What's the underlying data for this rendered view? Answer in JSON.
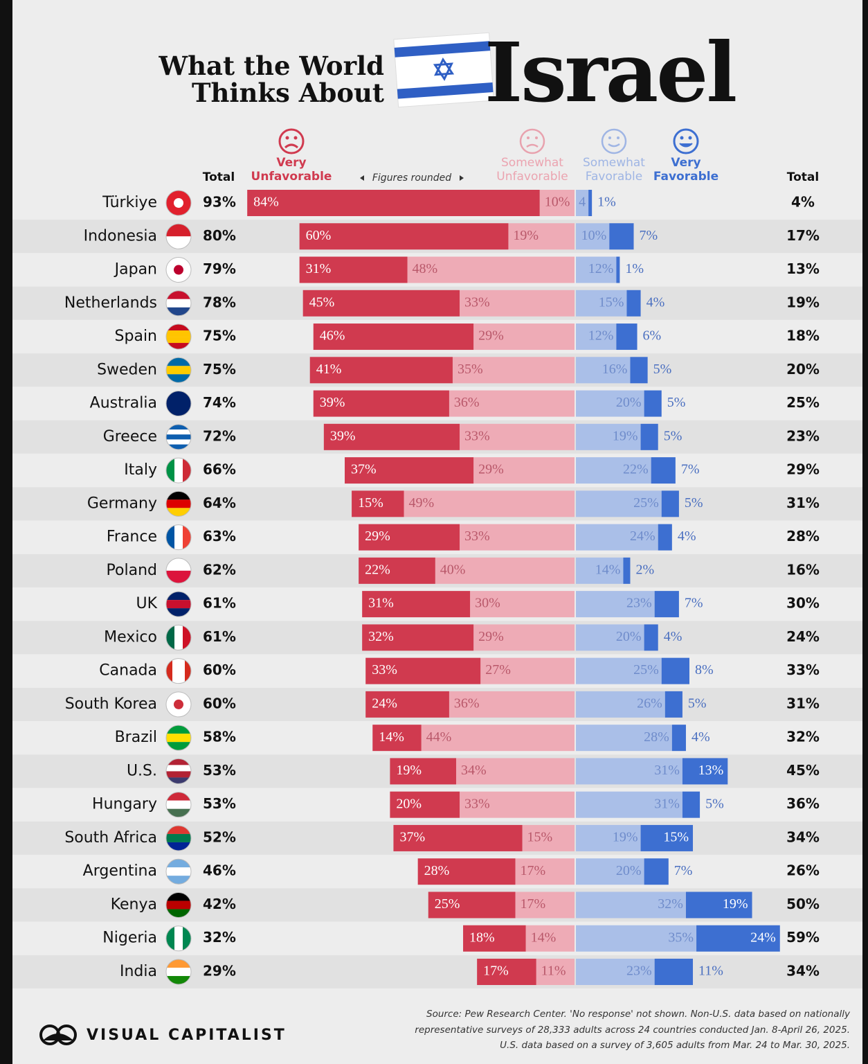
{
  "chart_data": {
    "type": "diverging_bar",
    "title_lines": [
      "What the World",
      "Thinks About"
    ],
    "title_emphasis": "Israel",
    "note": "Figures rounded",
    "total_label_left": "Total",
    "total_label_right": "Total",
    "categories": [
      "Türkiye",
      "Indonesia",
      "Japan",
      "Netherlands",
      "Spain",
      "Sweden",
      "Australia",
      "Greece",
      "Italy",
      "Germany",
      "France",
      "Poland",
      "UK",
      "Mexico",
      "Canada",
      "South Korea",
      "Brazil",
      "U.S.",
      "Hungary",
      "South Africa",
      "Argentina",
      "Kenya",
      "Nigeria",
      "India"
    ],
    "totals_unfavorable": {
      "values": [
        93,
        80,
        79,
        78,
        75,
        75,
        74,
        72,
        66,
        64,
        63,
        62,
        61,
        61,
        60,
        60,
        58,
        53,
        53,
        52,
        46,
        42,
        32,
        29
      ],
      "value_labels": [
        "93%",
        "80%",
        "79%",
        "78%",
        "75%",
        "75%",
        "74%",
        "72%",
        "66%",
        "64%",
        "63%",
        "62%",
        "61%",
        "61%",
        "60%",
        "60%",
        "58%",
        "53%",
        "53%",
        "52%",
        "46%",
        "42%",
        "32%",
        "29%"
      ]
    },
    "totals_favorable": {
      "values": [
        4,
        17,
        13,
        19,
        18,
        20,
        25,
        23,
        29,
        31,
        28,
        16,
        30,
        24,
        33,
        31,
        32,
        45,
        36,
        34,
        26,
        50,
        59,
        34
      ],
      "value_labels": [
        "4%",
        "17%",
        "13%",
        "19%",
        "18%",
        "20%",
        "25%",
        "23%",
        "29%",
        "31%",
        "28%",
        "16%",
        "30%",
        "24%",
        "33%",
        "31%",
        "32%",
        "45%",
        "36%",
        "34%",
        "26%",
        "50%",
        "59%",
        "34%"
      ]
    },
    "series": [
      {
        "name": "Very Unfavorable",
        "color": "#d03a4f",
        "values": [
          84,
          60,
          31,
          45,
          46,
          41,
          39,
          39,
          37,
          15,
          29,
          22,
          31,
          32,
          33,
          24,
          14,
          19,
          20,
          37,
          28,
          25,
          18,
          17
        ],
        "value_labels": [
          "84%",
          "60%",
          "31%",
          "45%",
          "46%",
          "41%",
          "39%",
          "39%",
          "37%",
          "15%",
          "29%",
          "22%",
          "31%",
          "32%",
          "33%",
          "24%",
          "14%",
          "19%",
          "20%",
          "37%",
          "28%",
          "25%",
          "18%",
          "17%"
        ]
      },
      {
        "name": "Somewhat Unfavorable",
        "color": "#eeabb6",
        "values": [
          10,
          19,
          48,
          33,
          29,
          35,
          36,
          33,
          29,
          49,
          33,
          40,
          30,
          29,
          27,
          36,
          44,
          34,
          33,
          15,
          17,
          17,
          14,
          11
        ],
        "value_labels": [
          "10%",
          "19%",
          "48%",
          "33%",
          "29%",
          "35%",
          "36%",
          "33%",
          "29%",
          "49%",
          "33%",
          "40%",
          "30%",
          "29%",
          "27%",
          "36%",
          "44%",
          "34%",
          "33%",
          "15%",
          "17%",
          "17%",
          "14%",
          "11%"
        ]
      },
      {
        "name": "Somewhat Favorable",
        "color": "#aabfe8",
        "values": [
          4,
          10,
          12,
          15,
          12,
          16,
          20,
          19,
          22,
          25,
          24,
          14,
          23,
          20,
          25,
          26,
          28,
          31,
          31,
          19,
          20,
          32,
          35,
          23
        ],
        "value_labels": [
          "4",
          "10%",
          "12%",
          "15%",
          "12%",
          "16%",
          "20%",
          "19%",
          "22%",
          "25%",
          "24%",
          "14%",
          "23%",
          "20%",
          "25%",
          "26%",
          "28%",
          "31%",
          "31%",
          "19%",
          "20%",
          "32%",
          "35%",
          "23%"
        ]
      },
      {
        "name": "Very Favorable",
        "color": "#3d6fd1",
        "values": [
          1,
          7,
          1,
          4,
          6,
          5,
          5,
          5,
          7,
          5,
          4,
          2,
          7,
          4,
          8,
          5,
          4,
          13,
          5,
          15,
          7,
          19,
          24,
          11
        ],
        "value_labels": [
          "1%",
          "7%",
          "1%",
          "4%",
          "6%",
          "5%",
          "5%",
          "5%",
          "7%",
          "5%",
          "4%",
          "2%",
          "7%",
          "4%",
          "8%",
          "5%",
          "4%",
          "13%",
          "5%",
          "15%",
          "7%",
          "19%",
          "24%",
          "11%"
        ]
      }
    ],
    "source_lines": [
      "Source: Pew Research Center. 'No response' not shown. Non-U.S. data based on nationally",
      "representative surveys of 28,333 adults across 24 countries conducted Jan. 8-April 26, 2025.",
      "U.S. data based on a survey of 3,605 adults from Mar. 24 to Mar. 30, 2025."
    ],
    "brand": "VISUAL CAPITALIST"
  }
}
